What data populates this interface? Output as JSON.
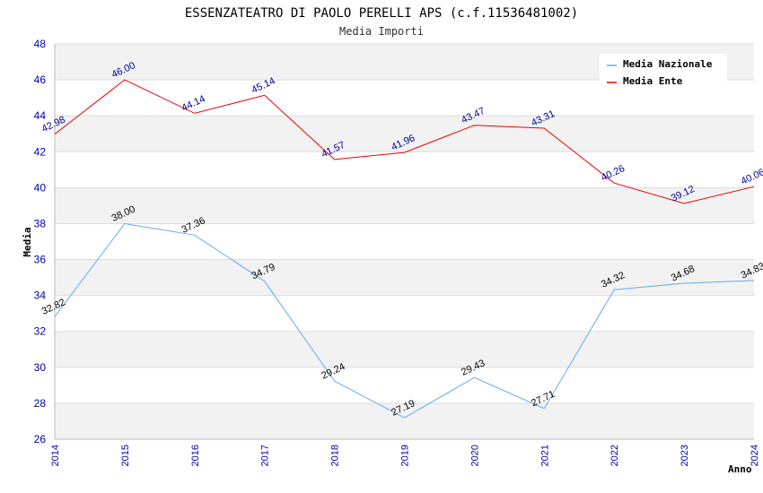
{
  "chart_data": {
    "type": "line",
    "title": "ESSENZATEATRO DI PAOLO PERELLI APS (c.f.11536481002)",
    "subtitle": "Media Importi",
    "xlabel": "Anno",
    "ylabel": "Media",
    "x": [
      "2014",
      "2015",
      "2016",
      "2017",
      "2018",
      "2019",
      "2020",
      "2021",
      "2022",
      "2023",
      "2024"
    ],
    "ylim": [
      26,
      48
    ],
    "yticks": [
      "26",
      "28",
      "30",
      "32",
      "34",
      "36",
      "38",
      "40",
      "42",
      "44",
      "46",
      "48"
    ],
    "legend_position": "top-right",
    "series": [
      {
        "name": "Media Nazionale",
        "color": "#66aaee",
        "label_color": "#000000",
        "values": [
          32.82,
          38.0,
          37.36,
          34.79,
          29.24,
          27.19,
          29.43,
          27.71,
          34.32,
          34.68,
          34.83
        ],
        "labels": [
          "32.82",
          "38.00",
          "37.36",
          "34.79",
          "29.24",
          "27.19",
          "29.43",
          "27.71",
          "34.32",
          "34.68",
          "34.83"
        ]
      },
      {
        "name": "Media Ente",
        "color": "#ee0000",
        "label_color": "#000099",
        "values": [
          42.98,
          46.0,
          44.14,
          45.14,
          41.57,
          41.96,
          43.47,
          43.31,
          40.26,
          39.12,
          40.06
        ],
        "labels": [
          "42.98",
          "46.00",
          "44.14",
          "45.14",
          "41.57",
          "41.96",
          "43.47",
          "43.31",
          "40.26",
          "39.12",
          "40.06"
        ]
      }
    ]
  }
}
